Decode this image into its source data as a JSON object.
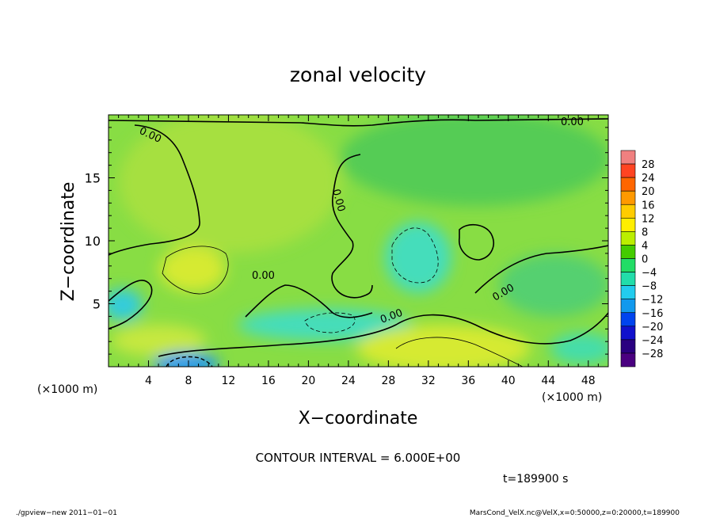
{
  "chart_data": {
    "type": "heatmap",
    "title": "zonal velocity",
    "xlabel": "X−coordinate",
    "ylabel": "Z−coordinate",
    "x_unit": "(×1000 m)",
    "x_unit_corner": "(×1000 m)",
    "xlim": [
      0,
      50
    ],
    "ylim": [
      0,
      20
    ],
    "xticks": [
      4,
      8,
      12,
      16,
      20,
      24,
      28,
      32,
      36,
      40,
      44,
      48
    ],
    "yticks": [
      5,
      10,
      15
    ],
    "colorbar_levels": [
      28,
      24,
      20,
      16,
      12,
      8,
      4,
      0,
      -4,
      -8,
      -12,
      -16,
      -20,
      -24,
      -28
    ],
    "colorbar_labels": [
      "28",
      "24",
      "20",
      "16",
      "12",
      "8",
      "4",
      "0",
      "−4",
      "−8",
      "−12",
      "−16",
      "−20",
      "−24",
      "−28"
    ],
    "colorbar_colors": [
      "#f08080",
      "#ff4422",
      "#ff6600",
      "#ff9900",
      "#ffcc00",
      "#ffee00",
      "#bbee00",
      "#44cc00",
      "#22dd66",
      "#22ddaa",
      "#22ccee",
      "#1199ee",
      "#0044ee",
      "#1111cc",
      "#2a0080",
      "#4a0080"
    ],
    "zero_contour_label": "0.00",
    "contour_interval_text": "CONTOUR INTERVAL = 6.000E+00",
    "time_text": "t=189900 s",
    "grid": false
  },
  "footer": {
    "left": "./gpview−new   2011−01−01",
    "right": "MarsCond_VelX.nc@VelX,x=0:50000,z=0:20000,t=189900"
  }
}
